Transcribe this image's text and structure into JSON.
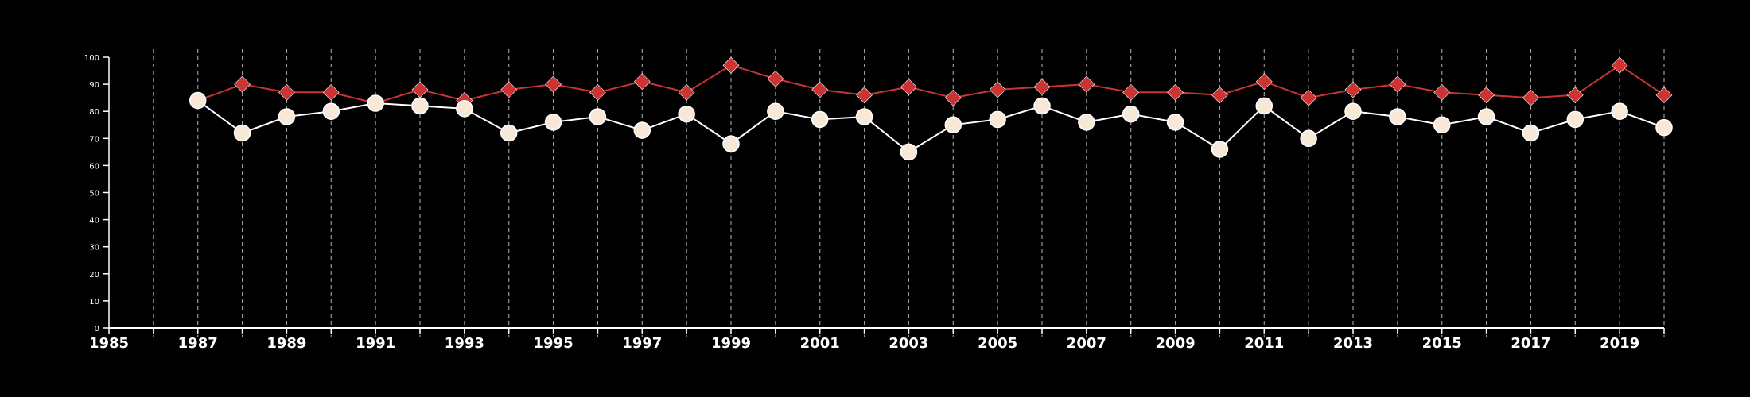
{
  "chart_data": {
    "type": "line",
    "title": "",
    "xlabel": "",
    "ylabel": "",
    "xlim": [
      1985,
      2020
    ],
    "ylim": [
      0,
      100
    ],
    "y_ticks": [
      0,
      10,
      20,
      30,
      40,
      50,
      60,
      70,
      80,
      90,
      100
    ],
    "x_tick_labels": [
      1985,
      1987,
      1989,
      1991,
      1993,
      1995,
      1997,
      1999,
      2001,
      2003,
      2005,
      2007,
      2009,
      2011,
      2013,
      2015,
      2017,
      2019
    ],
    "grid": {
      "vertical": "dashed",
      "horizontal": false
    },
    "legend": "none",
    "x": [
      1987,
      1988,
      1989,
      1990,
      1991,
      1992,
      1993,
      1994,
      1995,
      1996,
      1997,
      1998,
      1999,
      2000,
      2001,
      2002,
      2003,
      2004,
      2005,
      2006,
      2007,
      2008,
      2009,
      2010,
      2011,
      2012,
      2013,
      2014,
      2015,
      2016,
      2017,
      2018,
      2019,
      2020
    ],
    "series": [
      {
        "color": "#cc3333",
        "marker": "diamond",
        "values": [
          84,
          90,
          87,
          87,
          83,
          88,
          84,
          88,
          90,
          87,
          91,
          87,
          97,
          92,
          88,
          86,
          89,
          85,
          88,
          89,
          90,
          87,
          87,
          86,
          91,
          85,
          88,
          90,
          87,
          86,
          85,
          86,
          97,
          86
        ]
      },
      {
        "color": "#f7e8d8",
        "line_color": "#ffffff",
        "marker": "circle",
        "values": [
          84,
          72,
          78,
          80,
          83,
          82,
          81,
          72,
          76,
          78,
          73,
          79,
          68,
          80,
          77,
          78,
          65,
          75,
          77,
          82,
          76,
          79,
          76,
          66,
          82,
          70,
          80,
          78,
          75,
          78,
          72,
          77,
          80,
          74
        ]
      }
    ]
  }
}
